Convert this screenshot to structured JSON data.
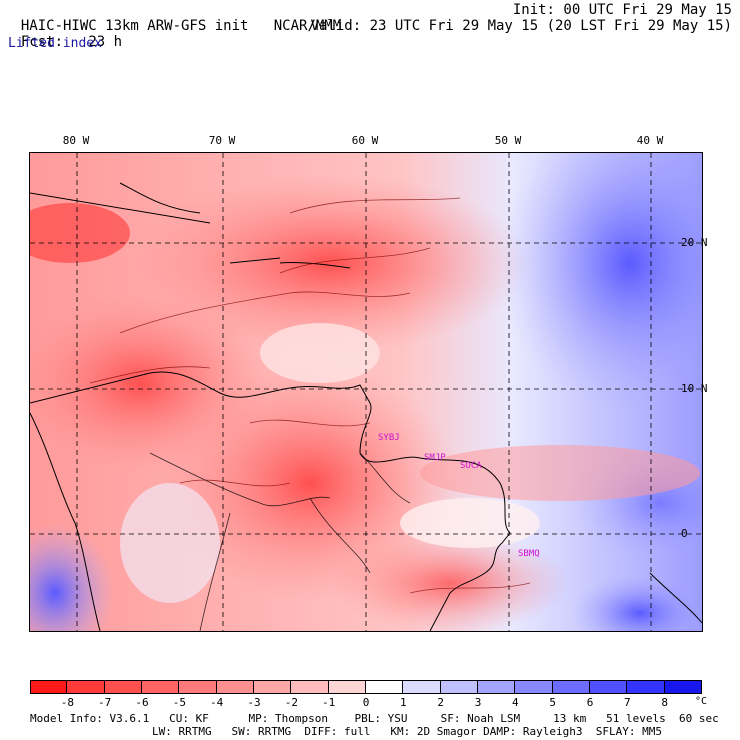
{
  "header": {
    "model": "HAIC-HIWC 13km ARW-GFS init",
    "org": "NCAR/MMM",
    "init": "Init: 00 UTC Fri 29 May 15",
    "fcst_label": "Fcst:",
    "fcst_value": "23 h",
    "valid": "Valid: 23 UTC Fri 29 May 15 (20 LST Fri 29 May 15)",
    "field": "Lifted index"
  },
  "map": {
    "lon_labels": [
      "80 W",
      "70 W",
      "60 W",
      "50 W",
      "40 W"
    ],
    "lat_labels": [
      "20 N",
      "10 N",
      "0"
    ],
    "region_labels": [
      "SYBJ",
      "SMJP",
      "SOCA",
      "SBMQ"
    ]
  },
  "colorbar": {
    "unit": "°C",
    "tick_labels": [
      "-8",
      "-7",
      "-6",
      "-5",
      "-4",
      "-3",
      "-2",
      "-1",
      "0",
      "1",
      "2",
      "3",
      "4",
      "5",
      "6",
      "7",
      "8"
    ],
    "colors": [
      "#ff1a1a",
      "#ff3a3a",
      "#ff5050",
      "#ff6464",
      "#ff7a7a",
      "#ff9090",
      "#ffa6a6",
      "#ffbcbc",
      "#ffd6d6",
      "#ffffff",
      "#dcdcff",
      "#c0c0ff",
      "#a4a4ff",
      "#8888ff",
      "#6c6cff",
      "#5050ff",
      "#3434ff",
      "#1818ee"
    ]
  },
  "footer": {
    "line1": "Model Info: V3.6.1   CU: KF      MP: Thompson    PBL: YSU     SF: Noah LSM     13 km   51 levels  60 sec",
    "line2": "LW: RRTMG   SW: RRTMG  DIFF: full   KM: 2D Smagor DAMP: Rayleigh3  SFLAY: MM5"
  }
}
